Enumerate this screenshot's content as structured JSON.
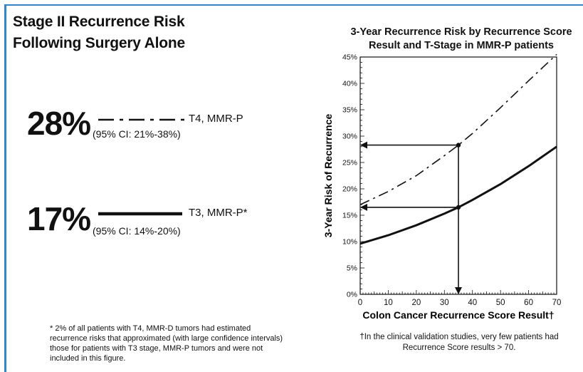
{
  "left": {
    "title_line1": "Stage II Recurrence Risk",
    "title_line2": "Following Surgery Alone",
    "stats": [
      {
        "percent": "28%",
        "ci": "(95% CI: 21%-38%)",
        "label": "T4, MMR-P",
        "line_style": "dash-dot"
      },
      {
        "percent": "17%",
        "ci": "(95% CI: 14%-20%)",
        "label": "T3, MMR-P*",
        "line_style": "solid"
      }
    ],
    "footnote": "* 2% of all patients with T4, MMR-D tumors had estimated recurrence risks that approximated (with large confidence intervals) those for patients with T3 stage, MMR-P tumors and were not included in this figure."
  },
  "chart_data": {
    "type": "line",
    "title": "3-Year Recurrence Risk by Recurrence Score Result and T-Stage in MMR-P patients",
    "xlabel": "Colon Cancer Recurrence Score Result†",
    "ylabel": "3-Year Risk of Recurrence",
    "xlim": [
      0,
      70
    ],
    "ylim": [
      0,
      45
    ],
    "x_ticks": [
      0,
      10,
      20,
      30,
      40,
      50,
      60,
      70
    ],
    "y_ticks": [
      "0%",
      "5%",
      "10%",
      "15%",
      "20%",
      "25%",
      "30%",
      "35%",
      "40%",
      "45%"
    ],
    "grid": false,
    "series": [
      {
        "name": "T4, MMR-P",
        "style": "dash-dot",
        "x": [
          0,
          10,
          20,
          30,
          35,
          40,
          50,
          60,
          70
        ],
        "y": [
          17,
          19.5,
          22.5,
          26.3,
          28.3,
          30.5,
          35.4,
          40.5,
          45.5
        ]
      },
      {
        "name": "T3, MMR-P",
        "style": "solid",
        "x": [
          0,
          10,
          20,
          30,
          35,
          40,
          50,
          60,
          70
        ],
        "y": [
          9.6,
          11.2,
          13.1,
          15.3,
          16.5,
          17.9,
          20.9,
          24.3,
          28.0
        ]
      }
    ],
    "annotations": {
      "marker_x": 35,
      "marker_points": [
        28.3,
        16.5
      ]
    },
    "footnote": "†In the clinical validation studies, very few patients had Recurrence Score results > 70."
  },
  "colors": {
    "frame": "#2e86d6",
    "ink": "#111111"
  }
}
